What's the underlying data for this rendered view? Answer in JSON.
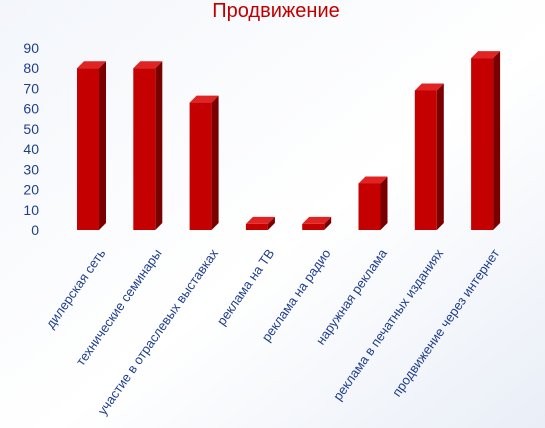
{
  "chart_data": {
    "type": "bar",
    "title": "Продвижение",
    "xlabel": "",
    "ylabel": "",
    "ylim": [
      0,
      90
    ],
    "yticks": [
      0,
      10,
      20,
      30,
      40,
      50,
      60,
      70,
      80,
      90
    ],
    "grid": false,
    "legend": "none",
    "categories": [
      "дилерская сеть",
      "технические семинары",
      "участие в отраслевых выставках",
      "реклама на ТВ",
      "реклама на радио",
      "наружная реклама",
      "реклама в печатных изданиях",
      "продвижение через интернет"
    ],
    "values": [
      80,
      80,
      63,
      3,
      3,
      23,
      69,
      85
    ]
  },
  "colors": {
    "bar_front": "#c40000",
    "bar_side": "#7a0000",
    "bar_top": "#e02424",
    "title": "#c00000",
    "axis_text": "#1f3f8c"
  }
}
